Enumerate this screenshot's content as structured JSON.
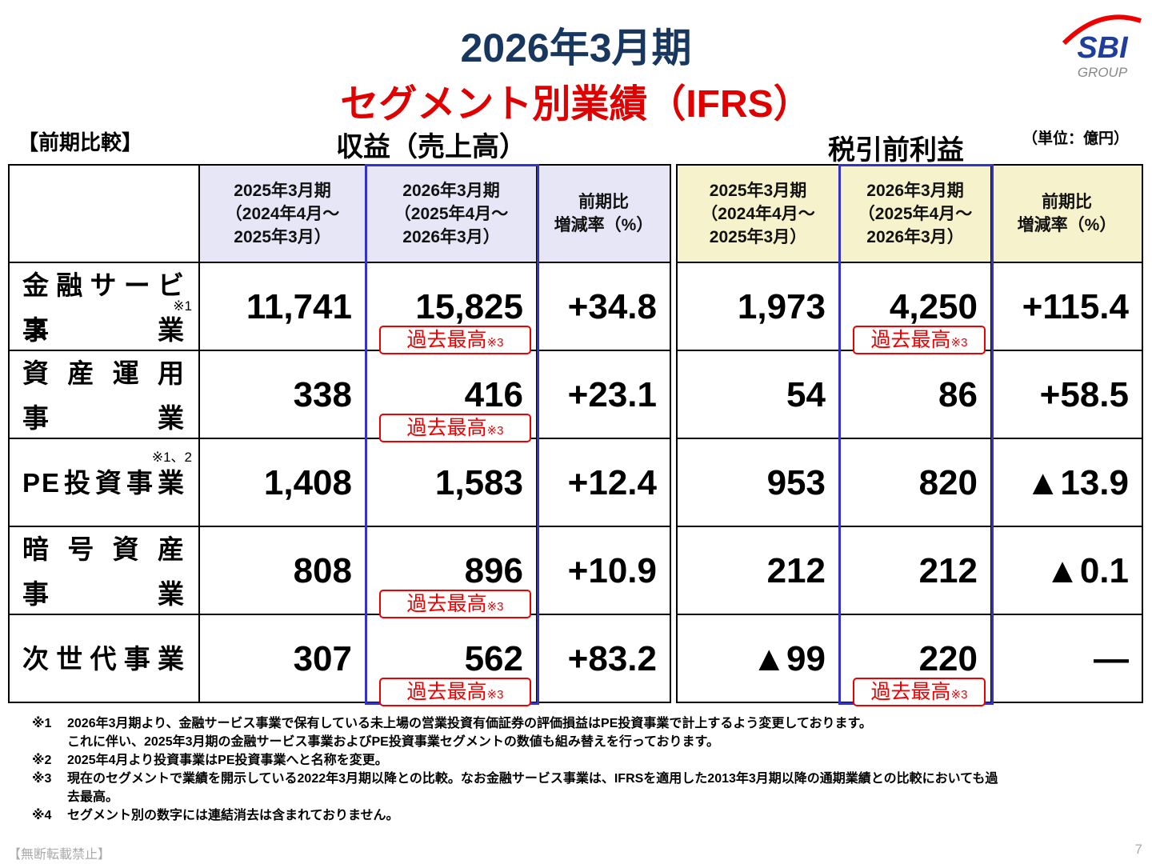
{
  "header": {
    "title": "2026年3月期",
    "subtitle": "セグメント別業績（IFRS）",
    "logo": "SBI",
    "logo_sub": "GROUP"
  },
  "labels": {
    "comparison": "【前期比較】",
    "revenue": "収益（売上高）",
    "profit": "税引前利益",
    "unit": "（単位：億円）"
  },
  "table": {
    "columns": [
      {
        "lines": [
          "2025年3月期",
          "（2024年4月～",
          "2025年3月）"
        ]
      },
      {
        "lines": [
          "2026年3月期",
          "（2025年4月～",
          "2026年3月）"
        ]
      },
      {
        "lines": [
          "前期比",
          "増減率（%）"
        ]
      },
      {
        "lines": [
          "2025年3月期",
          "（2024年4月～",
          "2025年3月）"
        ]
      },
      {
        "lines": [
          "2026年3月期",
          "（2025年4月～",
          "2026年3月）"
        ]
      },
      {
        "lines": [
          "前期比",
          "増減率（%）"
        ]
      }
    ],
    "rows": [
      {
        "name": [
          "金融サービス",
          "事業"
        ],
        "note": "※1",
        "cells": [
          {
            "text": "11,741"
          },
          {
            "text": "15,825",
            "badge": {
              "text": "過去最高",
              "note": "※3"
            }
          },
          {
            "text": "+34.8"
          },
          {
            "text": "1,973"
          },
          {
            "text": "4,250",
            "badge": {
              "text": "過去最高",
              "note": "※3"
            }
          },
          {
            "text": "+115.4"
          }
        ]
      },
      {
        "name": [
          "資産運用",
          "事業"
        ],
        "cells": [
          {
            "text": "338"
          },
          {
            "text": "416",
            "badge": {
              "text": "過去最高",
              "note": "※3"
            }
          },
          {
            "text": "+23.1"
          },
          {
            "text": "54"
          },
          {
            "text": "86"
          },
          {
            "text": "+58.5"
          }
        ]
      },
      {
        "name": [
          "PE投資事業"
        ],
        "note": "※1、2",
        "cells": [
          {
            "text": "1,408"
          },
          {
            "text": "1,583"
          },
          {
            "text": "+12.4"
          },
          {
            "text": "953"
          },
          {
            "text": "820"
          },
          {
            "text": "▲13.9"
          }
        ]
      },
      {
        "name": [
          "暗号資産",
          "事業"
        ],
        "cells": [
          {
            "text": "808"
          },
          {
            "text": "896",
            "badge": {
              "text": "過去最高",
              "note": "※3"
            }
          },
          {
            "text": "+10.9"
          },
          {
            "text": "212"
          },
          {
            "text": "212"
          },
          {
            "text": "▲0.1"
          }
        ]
      },
      {
        "name": [
          "次世代事業"
        ],
        "cells": [
          {
            "text": "307"
          },
          {
            "text": "562",
            "badge": {
              "text": "過去最高",
              "note": "※3"
            }
          },
          {
            "text": "+83.2"
          },
          {
            "text": "▲99"
          },
          {
            "text": "220",
            "badge": {
              "text": "過去最高",
              "note": "※3"
            }
          },
          {
            "text": "―"
          }
        ]
      }
    ]
  },
  "footnotes": [
    {
      "mark": "※1",
      "lines": [
        "2026年3月期より、金融サービス事業で保有している未上場の営業投資有価証券の評価損益はPE投資事業で計上するよう変更しております。",
        "これに伴い、2025年3月期の金融サービス事業およびPE投資事業セグメントの数値も組み替えを行っております。"
      ]
    },
    {
      "mark": "※2",
      "lines": [
        "2025年4月より投資事業はPE投資事業へと名称を変更。"
      ]
    },
    {
      "mark": "※3",
      "lines": [
        "現在のセグメントで業績を開示している2022年3月期以降との比較。なお金融サービス事業は、IFRSを適用した2013年3月期以降の通期業績との比較においても過",
        "去最高。"
      ]
    },
    {
      "mark": "※4",
      "lines": [
        "セグメント別の数字には連結消去は含まれておりません。"
      ]
    }
  ],
  "footer": {
    "notice": "【無断転載禁止】",
    "page": "7"
  }
}
